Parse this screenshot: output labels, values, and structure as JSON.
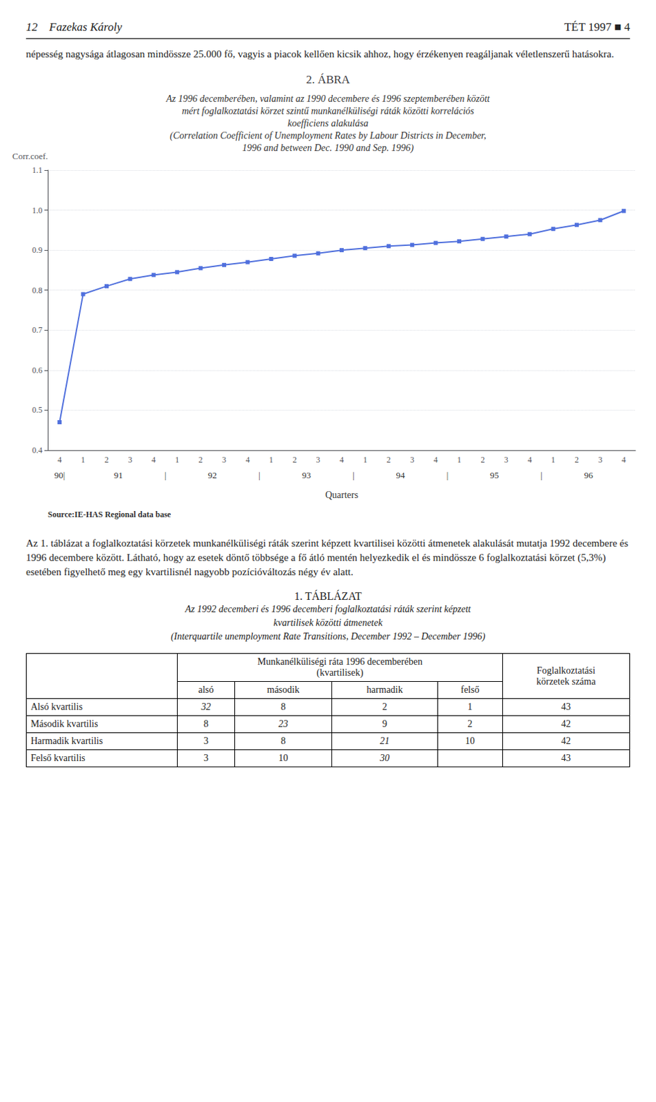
{
  "header_left": "12    Fazekas Károly",
  "header_right": "TÉT 1997 ■ 4",
  "paragraph": "népesség nagysága átlagosan mindössze 25.000 fő, vagyis a piacok kellően kicsik ahhoz, hogy érzékenyen reagáljanak véletlenszerű hatásokra.",
  "chart_data": {
    "type": "line",
    "title": "2. ÁBRA",
    "subtitle": [
      "Az 1996 decemberében, valamint az 1990 decembere és 1996 szeptemberében között",
      "mért foglalkoztatási körzet szintű munkanélküliségi ráták közötti korrelációs",
      "koefficiens alakulása",
      "(Correlation Coefficient of Unemployment Rates by Labour Districts in December,",
      "1996 and between Dec. 1990 and Sep. 1996)"
    ],
    "ylabel": "Corr.coef.",
    "xlabel": "Quarters",
    "source": "Source:IE-HAS Regional data base",
    "categories": [
      "4",
      "1",
      "2",
      "3",
      "4",
      "1",
      "2",
      "3",
      "4",
      "1",
      "2",
      "3",
      "4",
      "1",
      "2",
      "3",
      "4",
      "1",
      "2",
      "3",
      "4",
      "1",
      "2",
      "3",
      "4"
    ],
    "values": [
      0.47,
      0.79,
      0.81,
      0.828,
      0.838,
      0.845,
      0.855,
      0.863,
      0.87,
      0.878,
      0.886,
      0.892,
      0.9,
      0.905,
      0.91,
      0.913,
      0.918,
      0.922,
      0.928,
      0.934,
      0.94,
      0.953,
      0.963,
      0.975,
      0.998
    ],
    "marker": "square",
    "ylim": [
      0.4,
      1.1
    ],
    "yticks": [
      0.4,
      0.5,
      0.6,
      0.7,
      0.8,
      0.9,
      {
        "value": 1.0,
        "label": "1.0"
      },
      1.1
    ],
    "grid": true,
    "annotations": [
      {
        "text": "90|",
        "x": 0
      },
      {
        "text": "91",
        "x": 2.5
      },
      {
        "text": "92",
        "x": 6.5
      },
      {
        "text": "93",
        "x": 10.5
      },
      {
        "text": "94",
        "x": 14.5
      },
      {
        "text": "95",
        "x": 18.5
      },
      {
        "text": "96",
        "x": 22.5
      },
      {
        "text": "|",
        "x": 4.5
      },
      {
        "text": "|",
        "x": 8.5
      },
      {
        "text": "|",
        "x": 12.5
      },
      {
        "text": "|",
        "x": 16.5
      },
      {
        "text": "|",
        "x": 20.5
      }
    ]
  },
  "body_text": "Az 1. táblázat a foglalkoztatási körzetek munkanélküliségi ráták szerint képzett kvartilisei közötti átmenetek alakulását mutatja 1992 decembere és 1996 decembere között. Látható, hogy az esetek döntő többsége a fő átló mentén helyezkedik el és mindössze 6 foglalkoztatási körzet (5,3%) esetében figyelhető meg egy kvartilisnél nagyobb pozícióváltozás négy év alatt.",
  "table": {
    "title": "1. TÁBLÁZAT",
    "subtitle": [
      "Az 1992 decemberi és 1996 decemberi foglalkoztatási ráták szerint képzett",
      "kvartilisek közötti átmenetek",
      "(Interquartile unemployment Rate Transitions, December 1992 – December 1996)"
    ],
    "header": [
      "Munkanélküliségi ráta 1996 decemberében",
      "(kvartilisek)"
    ],
    "count_header": [
      "Foglalkoztatási",
      "körzetek száma"
    ],
    "columns": [
      "alsó",
      "második",
      "harmadik",
      "felső"
    ],
    "rows": [
      "Alsó kvartilis",
      "Második kvartilis",
      "Harmadik kvartilis",
      "Felső kvartilis"
    ],
    "values": [
      [
        32,
        8,
        2,
        1
      ],
      [
        8,
        23,
        9,
        2
      ],
      [
        3,
        8,
        21,
        10
      ],
      [
        3,
        10,
        30,
        null
      ]
    ],
    "counts": [
      43,
      42,
      42,
      43
    ],
    "italic": [
      [
        true,
        false,
        false,
        false
      ],
      [
        false,
        true,
        false,
        false
      ],
      [
        false,
        false,
        true,
        false
      ],
      [
        false,
        false,
        true,
        false
      ]
    ]
  }
}
